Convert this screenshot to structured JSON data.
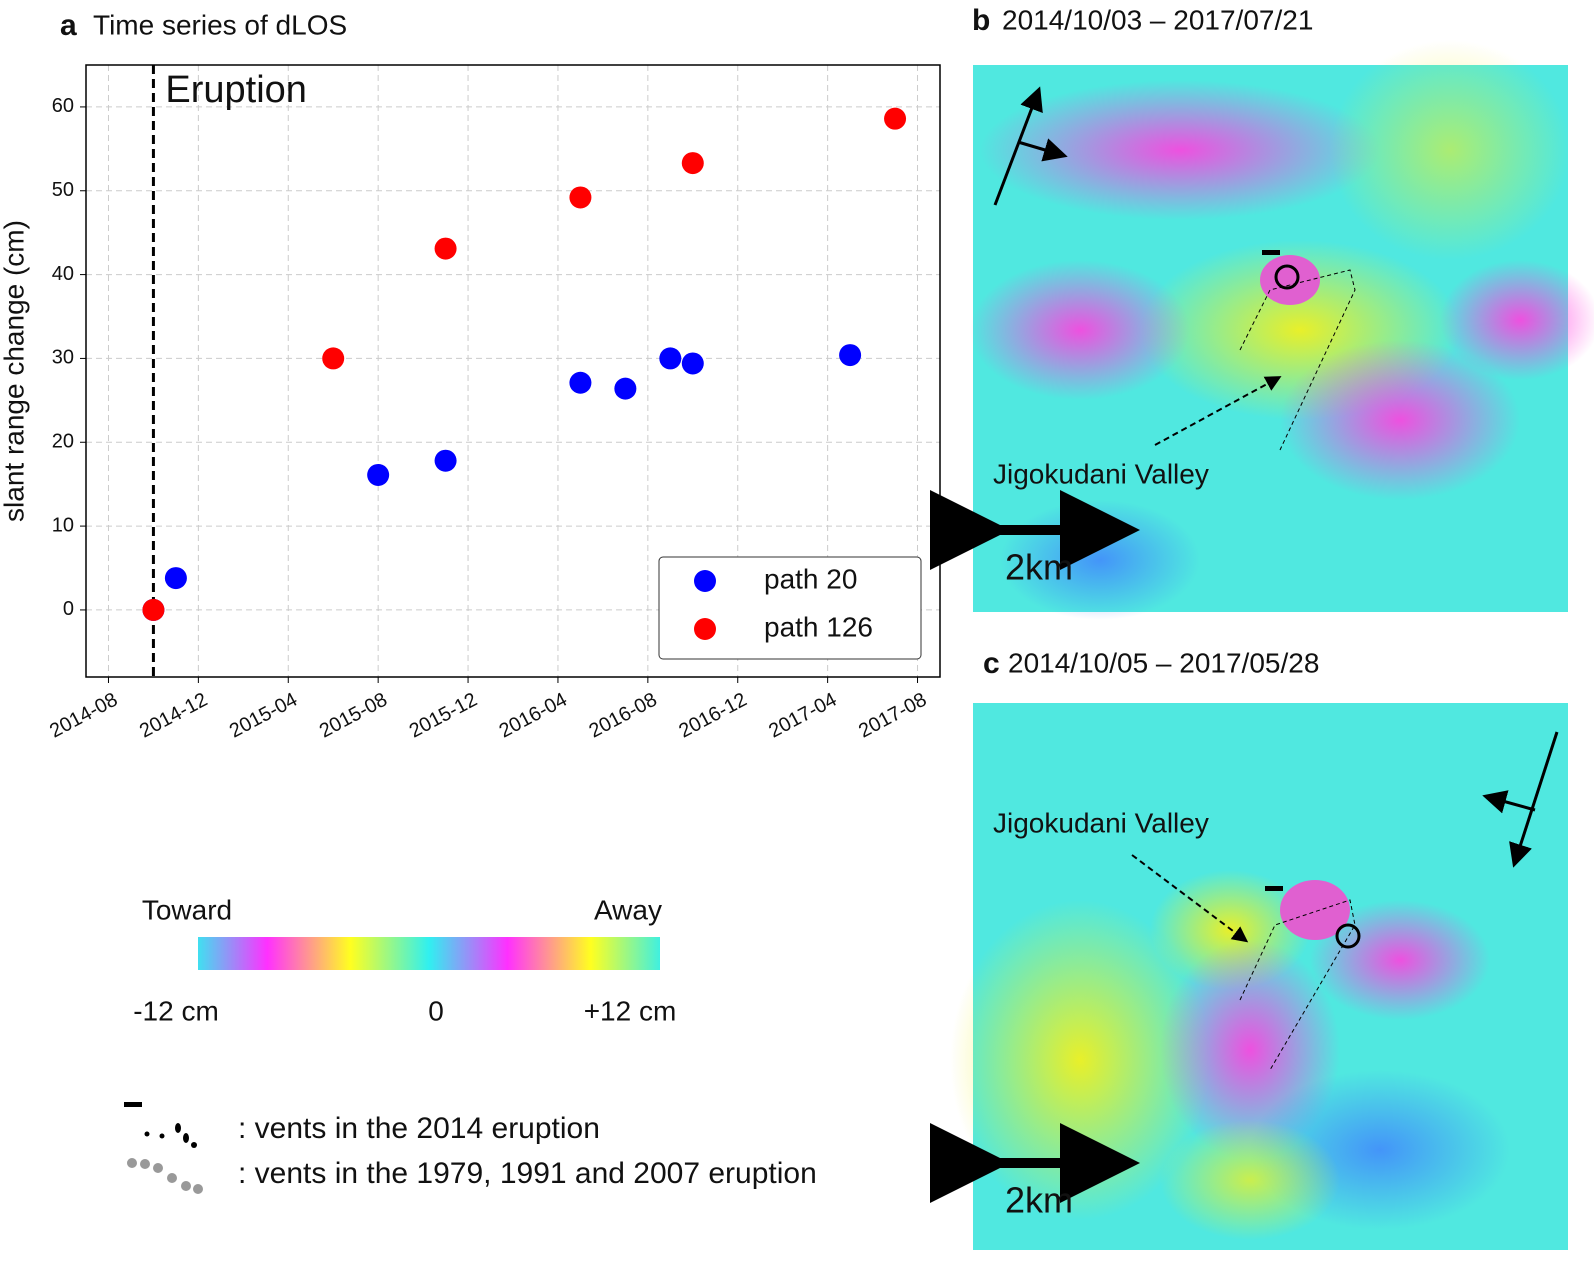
{
  "chart_data": {
    "type": "scatter",
    "panel": "a",
    "title": "Time series of dLOS",
    "ylabel": "slant range change (cm)",
    "xlim": [
      "2014-07",
      "2017-09"
    ],
    "xticks": [
      "2014-08",
      "2014-12",
      "2015-04",
      "2015-08",
      "2015-12",
      "2016-04",
      "2016-08",
      "2016-12",
      "2017-04",
      "2017-08"
    ],
    "ylim": [
      -8,
      65
    ],
    "yticks": [
      0,
      10,
      20,
      30,
      40,
      50,
      60
    ],
    "grid": true,
    "legend": "lower right",
    "annotation": {
      "label": "Eruption",
      "x": "2014-10"
    },
    "series": [
      {
        "name": "path 20",
        "color": "#0000ff",
        "x": [
          "2014-10",
          "2014-11",
          "2015-08",
          "2015-11",
          "2016-05",
          "2016-07",
          "2016-09",
          "2016-10",
          "2017-05"
        ],
        "values": [
          0,
          3.8,
          16.1,
          17.8,
          27.1,
          26.4,
          30,
          29.4,
          30.4
        ]
      },
      {
        "name": "path 126",
        "color": "#ff0000",
        "x": [
          "2014-10",
          "2015-06",
          "2015-11",
          "2016-05",
          "2016-10",
          "2017-07"
        ],
        "values": [
          0,
          30,
          43.1,
          49.2,
          53.3,
          58.6
        ]
      }
    ]
  },
  "colorbar": {
    "left_label": "Toward",
    "right_label": "Away",
    "ticks": [
      "-12 cm",
      "0",
      "+12 cm"
    ]
  },
  "vents_legend": [
    ": vents in the 2014 eruption",
    ": vents in the 1979, 1991 and 2007 eruption"
  ],
  "panel_b": {
    "letter": "b",
    "title": "2014/10/03 – 2017/07/21",
    "place": "Jigokudani Valley",
    "scale": "2km"
  },
  "panel_c": {
    "letter": "c",
    "title": "2014/10/05 – 2017/05/28",
    "place": "Jigokudani Valley",
    "scale": "2km"
  }
}
